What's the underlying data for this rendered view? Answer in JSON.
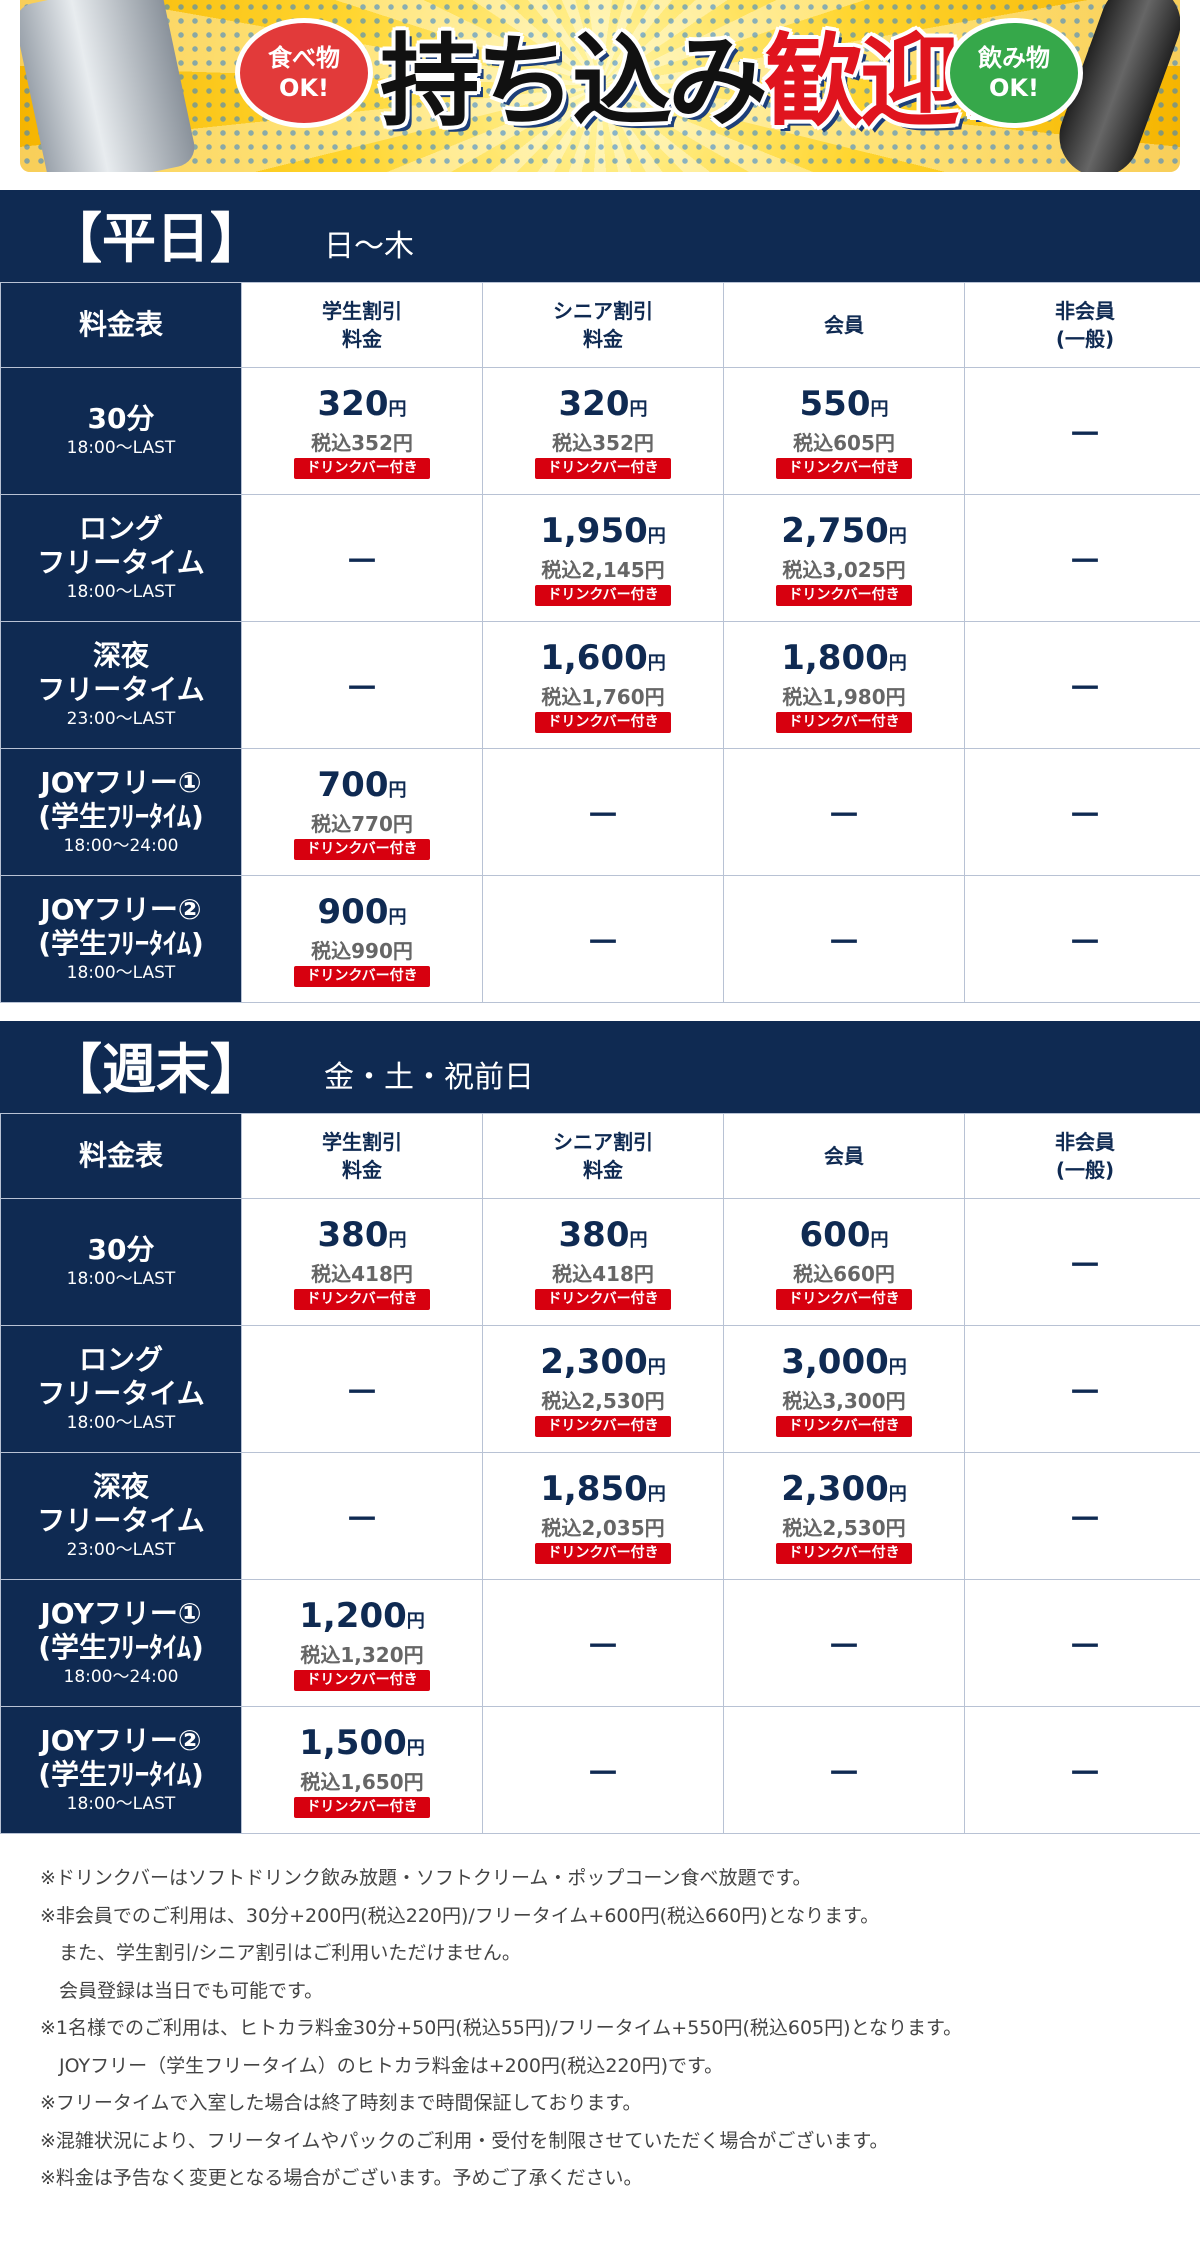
{
  "banner": {
    "left_bubble": [
      "食べ物",
      "OK!"
    ],
    "title_a": "持ち込み",
    "title_b": "歓迎!",
    "right_bubble": [
      "飲み物",
      "OK!"
    ]
  },
  "sections": [
    {
      "title": "【平日】",
      "subtitle": "日～木",
      "header": [
        [
          "料金表"
        ],
        [
          "学生割引",
          "料金"
        ],
        [
          "シニア割引",
          "料金"
        ],
        [
          "会員"
        ],
        [
          "非会員",
          "(一般)"
        ]
      ],
      "rows": [
        {
          "label": [
            "30分"
          ],
          "time": "18:00～LAST",
          "cells": [
            {
              "price": "320",
              "unit": "円",
              "tax": "税込352円",
              "badge": "ドリンクバー付き"
            },
            {
              "price": "320",
              "unit": "円",
              "tax": "税込352円",
              "badge": "ドリンクバー付き"
            },
            {
              "price": "550",
              "unit": "円",
              "tax": "税込605円",
              "badge": "ドリンクバー付き"
            },
            "－"
          ]
        },
        {
          "label": [
            "ロング",
            "フリータイム"
          ],
          "time": "18:00～LAST",
          "cells": [
            "－",
            {
              "price": "1,950",
              "unit": "円",
              "tax": "税込2,145円",
              "badge": "ドリンクバー付き"
            },
            {
              "price": "2,750",
              "unit": "円",
              "tax": "税込3,025円",
              "badge": "ドリンクバー付き"
            },
            "－"
          ]
        },
        {
          "label": [
            "深夜",
            "フリータイム"
          ],
          "time": "23:00～LAST",
          "cells": [
            "－",
            {
              "price": "1,600",
              "unit": "円",
              "tax": "税込1,760円",
              "badge": "ドリンクバー付き"
            },
            {
              "price": "1,800",
              "unit": "円",
              "tax": "税込1,980円",
              "badge": "ドリンクバー付き"
            },
            "－"
          ]
        },
        {
          "label": [
            "JOYフリー①",
            "(学生ﾌﾘｰﾀｲﾑ)"
          ],
          "time": "18:00～24:00",
          "cells": [
            {
              "price": "700",
              "unit": "円",
              "tax": "税込770円",
              "badge": "ドリンクバー付き"
            },
            "－",
            "－",
            "－"
          ]
        },
        {
          "label": [
            "JOYフリー②",
            "(学生ﾌﾘｰﾀｲﾑ)"
          ],
          "time": "18:00～LAST",
          "cells": [
            {
              "price": "900",
              "unit": "円",
              "tax": "税込990円",
              "badge": "ドリンクバー付き"
            },
            "－",
            "－",
            "－"
          ]
        }
      ]
    },
    {
      "title": "【週末】",
      "subtitle": "金・土・祝前日",
      "header": [
        [
          "料金表"
        ],
        [
          "学生割引",
          "料金"
        ],
        [
          "シニア割引",
          "料金"
        ],
        [
          "会員"
        ],
        [
          "非会員",
          "(一般)"
        ]
      ],
      "rows": [
        {
          "label": [
            "30分"
          ],
          "time": "18:00～LAST",
          "cells": [
            {
              "price": "380",
              "unit": "円",
              "tax": "税込418円",
              "badge": "ドリンクバー付き"
            },
            {
              "price": "380",
              "unit": "円",
              "tax": "税込418円",
              "badge": "ドリンクバー付き"
            },
            {
              "price": "600",
              "unit": "円",
              "tax": "税込660円",
              "badge": "ドリンクバー付き"
            },
            "－"
          ]
        },
        {
          "label": [
            "ロング",
            "フリータイム"
          ],
          "time": "18:00～LAST",
          "cells": [
            "－",
            {
              "price": "2,300",
              "unit": "円",
              "tax": "税込2,530円",
              "badge": "ドリンクバー付き"
            },
            {
              "price": "3,000",
              "unit": "円",
              "tax": "税込3,300円",
              "badge": "ドリンクバー付き"
            },
            "－"
          ]
        },
        {
          "label": [
            "深夜",
            "フリータイム"
          ],
          "time": "23:00～LAST",
          "cells": [
            "－",
            {
              "price": "1,850",
              "unit": "円",
              "tax": "税込2,035円",
              "badge": "ドリンクバー付き"
            },
            {
              "price": "2,300",
              "unit": "円",
              "tax": "税込2,530円",
              "badge": "ドリンクバー付き"
            },
            "－"
          ]
        },
        {
          "label": [
            "JOYフリー①",
            "(学生ﾌﾘｰﾀｲﾑ)"
          ],
          "time": "18:00～24:00",
          "cells": [
            {
              "price": "1,200",
              "unit": "円",
              "tax": "税込1,320円",
              "badge": "ドリンクバー付き"
            },
            "－",
            "－",
            "－"
          ]
        },
        {
          "label": [
            "JOYフリー②",
            "(学生ﾌﾘｰﾀｲﾑ)"
          ],
          "time": "18:00～LAST",
          "cells": [
            {
              "price": "1,500",
              "unit": "円",
              "tax": "税込1,650円",
              "badge": "ドリンクバー付き"
            },
            "－",
            "－",
            "－"
          ]
        }
      ]
    }
  ],
  "notes": [
    "※ドリンクバーはソフトドリンク飲み放題・ソフトクリーム・ポップコーン食べ放題です。",
    "※非会員でのご利用は、30分+200円(税込220円)/フリータイム+600円(税込660円)となります。",
    "　また、学生割引/シニア割引はご利用いただけません。",
    "　会員登録は当日でも可能です。",
    "※1名様でのご利用は、ヒトカラ料金30分+50円(税込55円)/フリータイム+550円(税込605円)となります。",
    "　JOYフリー（学生フリータイム）のヒトカラ料金は+200円(税込220円)です。",
    "※フリータイムで入室した場合は終了時刻まで時間保証しております。",
    "※混雑状況により、フリータイムやパックのご利用・受付を制限させていただく場合がございます。",
    "※料金は予告なく変更となる場合がございます。予めご了承ください。"
  ]
}
